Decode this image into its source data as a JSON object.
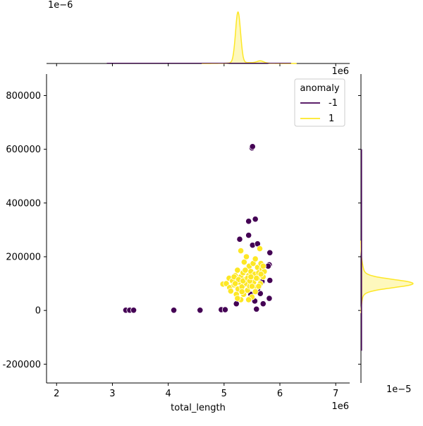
{
  "chart_data": {
    "type": "scatter",
    "title": "",
    "xlabel": "total_length",
    "ylabel": "",
    "x_offset_label": "1e6",
    "y_offset_label": "1e6",
    "top_marginal_offset_label": "1e−6",
    "right_marginal_offset_label": "1e−5",
    "xlim": [
      1.82,
      7.25
    ],
    "ylim": [
      -270000,
      880000
    ],
    "x_ticks": [
      2,
      3,
      4,
      5,
      6,
      7
    ],
    "x_tick_labels": [
      "2",
      "3",
      "4",
      "5",
      "6",
      "7"
    ],
    "y_ticks": [
      -200000,
      0,
      200000,
      400000,
      600000,
      800000
    ],
    "y_tick_labels": [
      "-200000",
      "0",
      "200000",
      "400000",
      "600000",
      "800000"
    ],
    "grid": false,
    "legend": {
      "title": "anomaly",
      "placement": "top-right",
      "entries": [
        {
          "label": "-1",
          "color": "#440154"
        },
        {
          "label": "1",
          "color": "#fde725"
        }
      ]
    },
    "series": [
      {
        "name": "-1",
        "color": "#440154",
        "points": [
          [
            3.24,
            1000
          ],
          [
            3.31,
            1000
          ],
          [
            3.38,
            1000
          ],
          [
            4.1,
            1000
          ],
          [
            4.57,
            1000
          ],
          [
            4.95,
            3000
          ],
          [
            5.02,
            3000
          ],
          [
            5.22,
            25000
          ],
          [
            5.5,
            605000
          ],
          [
            5.51,
            610000
          ],
          [
            5.56,
            340000
          ],
          [
            5.44,
            332000
          ],
          [
            5.44,
            280000
          ],
          [
            5.28,
            265000
          ],
          [
            5.51,
            243000
          ],
          [
            5.6,
            248000
          ],
          [
            5.82,
            215000
          ],
          [
            5.81,
            170000
          ],
          [
            5.79,
            165000
          ],
          [
            5.82,
            112000
          ],
          [
            5.66,
            128000
          ],
          [
            5.68,
            108000
          ],
          [
            5.65,
            63000
          ],
          [
            5.7,
            25000
          ],
          [
            5.81,
            45000
          ],
          [
            5.55,
            35000
          ],
          [
            5.58,
            5000
          ],
          [
            5.35,
            95000
          ],
          [
            5.48,
            60000
          ],
          [
            5.6,
            80000
          ]
        ]
      },
      {
        "name": "1",
        "color": "#fde725",
        "points": [
          [
            4.98,
            98000
          ],
          [
            5.04,
            100000
          ],
          [
            5.09,
            120000
          ],
          [
            5.1,
            85000
          ],
          [
            5.12,
            72000
          ],
          [
            5.15,
            110000
          ],
          [
            5.18,
            95000
          ],
          [
            5.2,
            130000
          ],
          [
            5.22,
            60000
          ],
          [
            5.24,
            150000
          ],
          [
            5.25,
            80000
          ],
          [
            5.28,
            105000
          ],
          [
            5.3,
            222000
          ],
          [
            5.3,
            125000
          ],
          [
            5.32,
            88000
          ],
          [
            5.34,
            140000
          ],
          [
            5.35,
            60000
          ],
          [
            5.36,
            180000
          ],
          [
            5.38,
            115000
          ],
          [
            5.4,
            100000
          ],
          [
            5.4,
            200000
          ],
          [
            5.42,
            75000
          ],
          [
            5.44,
            130000
          ],
          [
            5.45,
            165000
          ],
          [
            5.46,
            90000
          ],
          [
            5.48,
            145000
          ],
          [
            5.5,
            120000
          ],
          [
            5.5,
            50000
          ],
          [
            5.52,
            175000
          ],
          [
            5.53,
            105000
          ],
          [
            5.55,
            135000
          ],
          [
            5.56,
            192000
          ],
          [
            5.58,
            85000
          ],
          [
            5.6,
            160000
          ],
          [
            5.6,
            118000
          ],
          [
            5.62,
            140000
          ],
          [
            5.64,
            230000
          ],
          [
            5.65,
            100000
          ],
          [
            5.66,
            175000
          ],
          [
            5.68,
            155000
          ],
          [
            5.7,
            125000
          ],
          [
            5.72,
            145000
          ],
          [
            5.3,
            40000
          ],
          [
            5.44,
            40000
          ],
          [
            5.24,
            45000
          ],
          [
            5.18,
            125000
          ],
          [
            5.26,
            115000
          ],
          [
            5.38,
            150000
          ],
          [
            5.5,
            90000
          ],
          [
            5.62,
            90000
          ],
          [
            5.56,
            70000
          ],
          [
            5.2,
            100000
          ],
          [
            5.34,
            110000
          ],
          [
            5.42,
            120000
          ],
          [
            5.46,
            110000
          ],
          [
            5.58,
            120000
          ],
          [
            5.66,
            135000
          ],
          [
            5.7,
            165000
          ],
          [
            5.32,
            70000
          ],
          [
            5.48,
            125000
          ]
        ]
      }
    ],
    "marginal_top": {
      "series_-1": {
        "peak_x": 5.25,
        "shape": "near-zero"
      },
      "series_1": {
        "peak_x": 5.25,
        "secondary_x": 5.65
      }
    },
    "marginal_right": {
      "series_-1": {
        "shape": "near-zero"
      },
      "series_1": {
        "peak_y": 100000
      }
    }
  }
}
